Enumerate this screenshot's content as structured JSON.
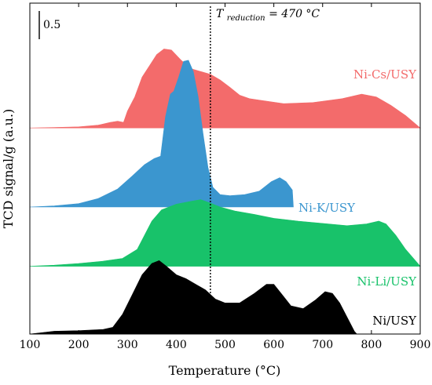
{
  "chart_data": {
    "type": "area",
    "xlabel": "Temperature (°C)",
    "ylabel": "TCD signal/g (a.u.)",
    "xlim": [
      100,
      900
    ],
    "x_ticks": [
      100,
      200,
      300,
      400,
      500,
      600,
      700,
      800,
      900
    ],
    "scale_bar_label": "0.5",
    "scale_bar_value": 0.5,
    "reference_line": {
      "x": 470,
      "label_prefix": "T",
      "label_subscript": "reduction",
      "label_suffix": " = 470 °C"
    },
    "series": [
      {
        "name": "Ni-Cs/USY",
        "color": "#f36b6b",
        "baseline_offset": 3.65,
        "points": [
          [
            100,
            0
          ],
          [
            150,
            0.01
          ],
          [
            200,
            0.02
          ],
          [
            240,
            0.05
          ],
          [
            265,
            0.1
          ],
          [
            280,
            0.12
          ],
          [
            292,
            0.1
          ],
          [
            300,
            0.3
          ],
          [
            315,
            0.55
          ],
          [
            330,
            0.9
          ],
          [
            345,
            1.1
          ],
          [
            360,
            1.3
          ],
          [
            375,
            1.4
          ],
          [
            390,
            1.38
          ],
          [
            410,
            1.2
          ],
          [
            430,
            1.05
          ],
          [
            450,
            1.0
          ],
          [
            470,
            0.95
          ],
          [
            490,
            0.85
          ],
          [
            510,
            0.72
          ],
          [
            530,
            0.58
          ],
          [
            550,
            0.52
          ],
          [
            580,
            0.48
          ],
          [
            620,
            0.43
          ],
          [
            680,
            0.45
          ],
          [
            740,
            0.52
          ],
          [
            780,
            0.6
          ],
          [
            810,
            0.55
          ],
          [
            840,
            0.4
          ],
          [
            870,
            0.22
          ],
          [
            900,
            0
          ]
        ]
      },
      {
        "name": "Ni-K/USY",
        "color": "#3b96cf",
        "baseline_offset": 2.25,
        "points": [
          [
            100,
            0
          ],
          [
            150,
            0.02
          ],
          [
            200,
            0.06
          ],
          [
            240,
            0.15
          ],
          [
            280,
            0.32
          ],
          [
            310,
            0.55
          ],
          [
            335,
            0.75
          ],
          [
            355,
            0.86
          ],
          [
            368,
            0.9
          ],
          [
            378,
            1.6
          ],
          [
            388,
            2.0
          ],
          [
            395,
            2.05
          ],
          [
            405,
            2.3
          ],
          [
            415,
            2.58
          ],
          [
            425,
            2.6
          ],
          [
            435,
            2.4
          ],
          [
            445,
            1.95
          ],
          [
            455,
            1.3
          ],
          [
            465,
            0.7
          ],
          [
            475,
            0.35
          ],
          [
            490,
            0.22
          ],
          [
            510,
            0.2
          ],
          [
            540,
            0.22
          ],
          [
            570,
            0.28
          ],
          [
            595,
            0.45
          ],
          [
            612,
            0.52
          ],
          [
            625,
            0.45
          ],
          [
            638,
            0.3
          ],
          [
            640,
            0
          ]
        ]
      },
      {
        "name": "Ni-Li/USY",
        "color": "#18c26a",
        "baseline_offset": 1.2,
        "points": [
          [
            100,
            0
          ],
          [
            150,
            0.02
          ],
          [
            200,
            0.05
          ],
          [
            250,
            0.09
          ],
          [
            290,
            0.14
          ],
          [
            320,
            0.3
          ],
          [
            335,
            0.55
          ],
          [
            350,
            0.8
          ],
          [
            370,
            1.0
          ],
          [
            400,
            1.1
          ],
          [
            430,
            1.15
          ],
          [
            450,
            1.18
          ],
          [
            470,
            1.12
          ],
          [
            490,
            1.05
          ],
          [
            520,
            0.98
          ],
          [
            560,
            0.92
          ],
          [
            600,
            0.85
          ],
          [
            650,
            0.8
          ],
          [
            700,
            0.76
          ],
          [
            750,
            0.72
          ],
          [
            790,
            0.75
          ],
          [
            815,
            0.8
          ],
          [
            830,
            0.75
          ],
          [
            850,
            0.55
          ],
          [
            870,
            0.3
          ],
          [
            895,
            0.05
          ],
          [
            900,
            0
          ]
        ]
      },
      {
        "name": "Ni/USY",
        "color": "#000000",
        "baseline_offset": 0,
        "points": [
          [
            100,
            0
          ],
          [
            150,
            0.05
          ],
          [
            200,
            0.06
          ],
          [
            250,
            0.08
          ],
          [
            270,
            0.12
          ],
          [
            290,
            0.35
          ],
          [
            310,
            0.7
          ],
          [
            330,
            1.05
          ],
          [
            350,
            1.25
          ],
          [
            365,
            1.3
          ],
          [
            380,
            1.2
          ],
          [
            400,
            1.05
          ],
          [
            420,
            0.98
          ],
          [
            440,
            0.88
          ],
          [
            460,
            0.78
          ],
          [
            480,
            0.62
          ],
          [
            500,
            0.55
          ],
          [
            530,
            0.55
          ],
          [
            560,
            0.72
          ],
          [
            585,
            0.88
          ],
          [
            600,
            0.88
          ],
          [
            615,
            0.72
          ],
          [
            635,
            0.5
          ],
          [
            660,
            0.45
          ],
          [
            685,
            0.6
          ],
          [
            705,
            0.75
          ],
          [
            720,
            0.72
          ],
          [
            735,
            0.55
          ],
          [
            750,
            0.3
          ],
          [
            765,
            0.05
          ],
          [
            770,
            0
          ]
        ]
      }
    ]
  }
}
